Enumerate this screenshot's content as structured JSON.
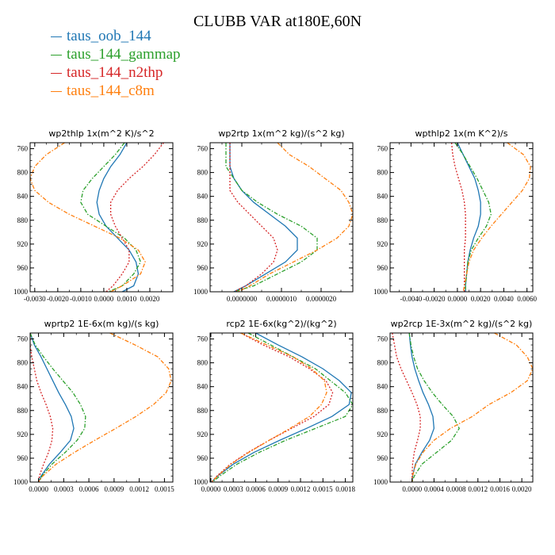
{
  "title": "CLUBB VAR at180E,60N",
  "legend": [
    {
      "label": "taus_oob_144",
      "color": "#1f77b4"
    },
    {
      "label": "taus_144_gammap",
      "color": "#2ca02c"
    },
    {
      "label": "taus_144_n2thp",
      "color": "#d62728"
    },
    {
      "label": "taus_144_c8m",
      "color": "#ff7f0e"
    }
  ],
  "chart_data": [
    {
      "type": "line",
      "title": "wp2thlp   1x(m^2 K)/s^2",
      "xlim": [
        -0.0032,
        0.003
      ],
      "xticks": [
        -0.003,
        -0.002,
        -0.001,
        0.0,
        0.001,
        0.002
      ],
      "xticklabels": [
        "-0.0030",
        "-0.0020",
        "-0.0010",
        "0.0000",
        "0.0010",
        "0.0020"
      ],
      "ylim": [
        750,
        1000
      ],
      "yticks": [
        760,
        800,
        840,
        880,
        920,
        960,
        1000
      ],
      "yticklabels": [
        "760",
        "800",
        "840",
        "880",
        "920",
        "960",
        "1000"
      ],
      "y": [
        750,
        770,
        790,
        810,
        830,
        850,
        870,
        890,
        910,
        930,
        950,
        970,
        990,
        1000
      ],
      "series": [
        {
          "name": "taus_oob_144",
          "values": [
            0.001,
            0.0007,
            0.0003,
            0.0,
            -0.0002,
            -0.0003,
            -0.0002,
            0.0001,
            0.0006,
            0.0011,
            0.0014,
            0.0015,
            0.0013,
            0.0008
          ]
        },
        {
          "name": "taus_144_gammap",
          "values": [
            0.0009,
            0.0005,
            0.0,
            -0.0005,
            -0.0009,
            -0.001,
            -0.0007,
            0.0001,
            0.0009,
            0.0014,
            0.0016,
            0.0013,
            0.0008,
            0.0002
          ]
        },
        {
          "name": "taus_144_n2thp",
          "values": [
            0.0026,
            0.0022,
            0.0017,
            0.0011,
            0.0006,
            0.0003,
            0.0003,
            0.0005,
            0.0008,
            0.0011,
            0.0011,
            0.0008,
            0.0004,
            0.0001
          ]
        },
        {
          "name": "taus_144_c8m",
          "values": [
            -0.0017,
            -0.0025,
            -0.003,
            -0.0032,
            -0.003,
            -0.0024,
            -0.0015,
            -0.0004,
            0.0007,
            0.0015,
            0.0018,
            0.0016,
            0.0008,
            0.0003
          ]
        }
      ]
    },
    {
      "type": "line",
      "title": "wp2rtp   1x(m^2 kg)/(s^2 kg)",
      "xlim": [
        -8e-07,
        2.8e-06
      ],
      "xticks": [
        0.0,
        1e-06,
        2e-06
      ],
      "xticklabels": [
        "0.0000000",
        "0.0000010",
        "0.0000020"
      ],
      "ylim": [
        750,
        1000
      ],
      "yticks": [
        760,
        800,
        840,
        880,
        920,
        960,
        1000
      ],
      "yticklabels": [
        "760",
        "800",
        "840",
        "880",
        "920",
        "960",
        "1000"
      ],
      "y": [
        750,
        770,
        790,
        810,
        830,
        850,
        870,
        890,
        910,
        930,
        950,
        970,
        990,
        1000
      ],
      "series": [
        {
          "name": "taus_oob_144",
          "values": [
            -3e-07,
            -3e-07,
            -3e-07,
            -2e-07,
            0.0,
            3e-07,
            7e-07,
            1.1e-06,
            1.4e-06,
            1.4e-06,
            1.1e-06,
            6e-07,
            1e-07,
            -2e-07
          ]
        },
        {
          "name": "taus_144_gammap",
          "values": [
            -4e-07,
            -4e-07,
            -4e-07,
            -2e-07,
            0.0,
            4e-07,
            9e-07,
            1.5e-06,
            1.9e-06,
            1.9e-06,
            1.5e-06,
            9e-07,
            3e-07,
            -2e-07
          ]
        },
        {
          "name": "taus_144_n2thp",
          "values": [
            -3e-07,
            -3e-07,
            -3e-07,
            -3e-07,
            -3e-07,
            -1e-07,
            2e-07,
            5e-07,
            8e-07,
            9e-07,
            8e-07,
            5e-07,
            1e-07,
            -2e-07
          ]
        },
        {
          "name": "taus_144_c8m",
          "values": [
            9e-07,
            1.2e-06,
            1.7e-06,
            2.1e-06,
            2.5e-06,
            2.7e-06,
            2.8e-06,
            2.7e-06,
            2.4e-06,
            1.9e-06,
            1.3e-06,
            7e-07,
            2e-07,
            -1e-07
          ]
        }
      ]
    },
    {
      "type": "line",
      "title": "wpthlp2   1x(m K^2)/s",
      "xlim": [
        -0.0058,
        0.0065
      ],
      "xticks": [
        -0.004,
        -0.002,
        0.0,
        0.002,
        0.004,
        0.006
      ],
      "xticklabels": [
        "-0.0040",
        "-0.0020",
        "0.0000",
        "0.0020",
        "0.0040",
        "0.0060"
      ],
      "ylim": [
        750,
        1000
      ],
      "yticks": [
        760,
        800,
        840,
        880,
        920,
        960,
        1000
      ],
      "yticklabels": [
        "760",
        "800",
        "840",
        "880",
        "920",
        "960",
        "1000"
      ],
      "y": [
        750,
        770,
        790,
        810,
        830,
        850,
        870,
        890,
        910,
        930,
        950,
        970,
        990,
        1000
      ],
      "series": [
        {
          "name": "taus_oob_144",
          "values": [
            0.0,
            0.0005,
            0.001,
            0.0015,
            0.0018,
            0.002,
            0.002,
            0.0018,
            0.0014,
            0.0011,
            0.0009,
            0.0008,
            0.0007,
            0.0007
          ]
        },
        {
          "name": "taus_144_gammap",
          "values": [
            -0.0002,
            0.0005,
            0.0011,
            0.0017,
            0.0022,
            0.0027,
            0.0029,
            0.0025,
            0.0018,
            0.0012,
            0.0009,
            0.0008,
            0.0007,
            0.0007
          ]
        },
        {
          "name": "taus_144_n2thp",
          "values": [
            -0.0005,
            -0.0004,
            -0.0002,
            0.0001,
            0.0004,
            0.0006,
            0.0007,
            0.0007,
            0.0007,
            0.0006,
            0.0006,
            0.0006,
            0.0006,
            0.0006
          ]
        },
        {
          "name": "taus_144_c8m",
          "values": [
            0.0043,
            0.0057,
            0.0063,
            0.0062,
            0.0056,
            0.0047,
            0.0038,
            0.0029,
            0.0021,
            0.0014,
            0.001,
            0.0008,
            0.0006,
            0.0005
          ]
        }
      ]
    },
    {
      "type": "line",
      "title": "wprtp2   1E-6x(m kg)/(s kg)",
      "xlim": [
        -0.0001,
        0.0016
      ],
      "xticks": [
        0.0,
        0.0003,
        0.0006,
        0.0009,
        0.0012,
        0.0015
      ],
      "xticklabels": [
        "0.0000",
        "0.0003",
        "0.0006",
        "0.0009",
        "0.0012",
        "0.0015"
      ],
      "ylim": [
        750,
        1000
      ],
      "yticks": [
        760,
        800,
        840,
        880,
        920,
        960,
        1000
      ],
      "yticklabels": [
        "760",
        "800",
        "840",
        "880",
        "920",
        "960",
        "1000"
      ],
      "y": [
        750,
        770,
        790,
        810,
        830,
        850,
        870,
        890,
        910,
        930,
        950,
        970,
        990,
        1000
      ],
      "series": [
        {
          "name": "taus_oob_144",
          "values": [
            -0.0001,
            -5e-05,
            3e-05,
            0.0001,
            0.00017,
            0.00024,
            0.00032,
            0.00039,
            0.00042,
            0.00038,
            0.00026,
            0.00013,
            3e-05,
            0.0
          ]
        },
        {
          "name": "taus_144_gammap",
          "values": [
            -0.0001,
            -4e-05,
            6e-05,
            0.00017,
            0.00029,
            0.00041,
            0.0005,
            0.00056,
            0.00055,
            0.00046,
            0.00032,
            0.00016,
            4e-05,
            0.0
          ]
        },
        {
          "name": "taus_144_n2thp",
          "values": [
            -0.0001,
            -0.0001,
            -8e-05,
            -5e-05,
            -2e-05,
            3e-05,
            9e-05,
            0.00014,
            0.00017,
            0.00016,
            0.00012,
            6e-05,
            1e-05,
            0.0
          ]
        },
        {
          "name": "taus_144_c8m",
          "values": [
            0.00085,
            0.00115,
            0.00142,
            0.00155,
            0.00158,
            0.00152,
            0.00137,
            0.00116,
            0.00092,
            0.00067,
            0.00043,
            0.00021,
            5e-05,
            0.0
          ]
        }
      ]
    },
    {
      "type": "line",
      "title": "rcp2   1E-6x(kg^2)/(kg^2)",
      "xlim": [
        -1e-05,
        0.0019
      ],
      "xticks": [
        0.0,
        0.0003,
        0.0006,
        0.0009,
        0.0012,
        0.0015,
        0.0018
      ],
      "xticklabels": [
        "0.0000",
        "0.0003",
        "0.0006",
        "0.0009",
        "0.0012",
        "0.0015",
        "0.0018"
      ],
      "ylim": [
        750,
        1000
      ],
      "yticks": [
        760,
        800,
        840,
        880,
        920,
        960,
        1000
      ],
      "yticklabels": [
        "760",
        "800",
        "840",
        "880",
        "920",
        "960",
        "1000"
      ],
      "y": [
        750,
        770,
        790,
        810,
        830,
        850,
        870,
        890,
        910,
        930,
        950,
        970,
        990,
        1000
      ],
      "series": [
        {
          "name": "taus_oob_144",
          "values": [
            0.0006,
            0.0009,
            0.00122,
            0.0015,
            0.00172,
            0.00188,
            0.00185,
            0.00162,
            0.00128,
            0.00092,
            0.00058,
            0.0003,
            9e-05,
            1e-05
          ]
        },
        {
          "name": "taus_144_gammap",
          "values": [
            0.0005,
            0.0008,
            0.0011,
            0.0014,
            0.0016,
            0.0018,
            0.0019,
            0.0018,
            0.0014,
            0.001,
            0.00065,
            0.00035,
            0.00012,
            2e-05
          ]
        },
        {
          "name": "taus_144_n2thp",
          "values": [
            0.0004,
            0.0007,
            0.00105,
            0.00132,
            0.00154,
            0.00163,
            0.00158,
            0.00138,
            0.00108,
            0.00078,
            0.0005,
            0.00026,
            8e-05,
            1e-05
          ]
        },
        {
          "name": "taus_144_c8m",
          "values": [
            0.0004,
            0.00075,
            0.0011,
            0.00135,
            0.00152,
            0.00155,
            0.00148,
            0.00132,
            0.00106,
            0.00078,
            0.00051,
            0.00027,
            9e-05,
            1e-05
          ]
        }
      ]
    },
    {
      "type": "line",
      "title": "wp2rcp   1E-3x(m^2 kg)/(s^2 kg)",
      "xlim": [
        -0.0004,
        0.0022
      ],
      "xticks": [
        0.0,
        0.0004,
        0.0008,
        0.0012,
        0.0016,
        0.002
      ],
      "xticklabels": [
        "0.0000",
        "0.0004",
        "0.0008",
        "0.0012",
        "0.0016",
        "0.0020"
      ],
      "ylim": [
        750,
        1000
      ],
      "yticks": [
        760,
        800,
        840,
        880,
        920,
        960,
        1000
      ],
      "yticklabels": [
        "760",
        "800",
        "840",
        "880",
        "920",
        "960",
        "1000"
      ],
      "y": [
        750,
        770,
        790,
        810,
        830,
        850,
        870,
        890,
        910,
        930,
        950,
        970,
        990,
        1000
      ],
      "series": [
        {
          "name": "taus_oob_144",
          "values": [
            -5e-05,
            -3e-05,
            0.0,
            5e-05,
            0.00012,
            0.0002,
            0.0003,
            0.00038,
            0.0004,
            0.00032,
            0.00018,
            6e-05,
            1e-05,
            0.0
          ]
        },
        {
          "name": "taus_144_gammap",
          "values": [
            -5e-05,
            -2e-05,
            3e-05,
            0.0001,
            0.00022,
            0.00037,
            0.00055,
            0.00075,
            0.00086,
            0.00072,
            0.00045,
            0.00018,
            4e-05,
            0.0
          ]
        },
        {
          "name": "taus_144_n2thp",
          "values": [
            -0.00036,
            -0.00032,
            -0.00028,
            -0.0002,
            -0.0001,
            0.0,
            9e-05,
            0.00015,
            0.00015,
            0.0001,
            4e-05,
            1e-05,
            0.0,
            0.0
          ]
        },
        {
          "name": "taus_144_c8m",
          "values": [
            0.0015,
            0.0019,
            0.0021,
            0.0022,
            0.0021,
            0.0018,
            0.0014,
            0.0011,
            0.0007,
            0.0004,
            0.0002,
            7e-05,
            1e-05,
            0.0
          ]
        }
      ]
    }
  ]
}
